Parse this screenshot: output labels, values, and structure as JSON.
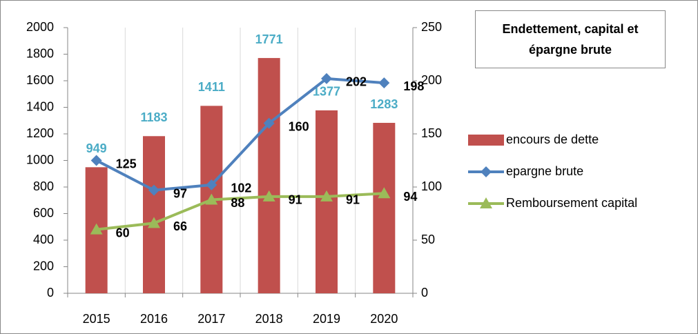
{
  "chart_data": {
    "type": "bar-line",
    "title": "Endettement, capital et épargne brute",
    "categories": [
      "2015",
      "2016",
      "2017",
      "2018",
      "2019",
      "2020"
    ],
    "series": [
      {
        "name": "encours de dette",
        "type": "bar",
        "color": "#c0504d",
        "label_color": "#4bacc6",
        "values": [
          949,
          1183,
          1411,
          1771,
          1377,
          1283
        ]
      },
      {
        "name": "epargne brute",
        "type": "line",
        "marker": "diamond",
        "axis": "y2",
        "color": "#4f81bd",
        "label_color": "#000000",
        "values": [
          125,
          97,
          102,
          160,
          202,
          198
        ]
      },
      {
        "name": "Remboursement capital",
        "type": "line",
        "marker": "triangle",
        "axis": "y2",
        "color": "#9bbb59",
        "label_color": "#000000",
        "values": [
          60,
          66,
          88,
          91,
          91,
          94
        ]
      }
    ],
    "ylim": [
      0,
      2000
    ],
    "yticks": [
      0,
      200,
      400,
      600,
      800,
      1000,
      1200,
      1400,
      1600,
      1800,
      2000
    ],
    "y2lim": [
      0,
      250
    ],
    "y2ticks": [
      0,
      50,
      100,
      150,
      200,
      250
    ],
    "grid": true,
    "legend": "right"
  }
}
